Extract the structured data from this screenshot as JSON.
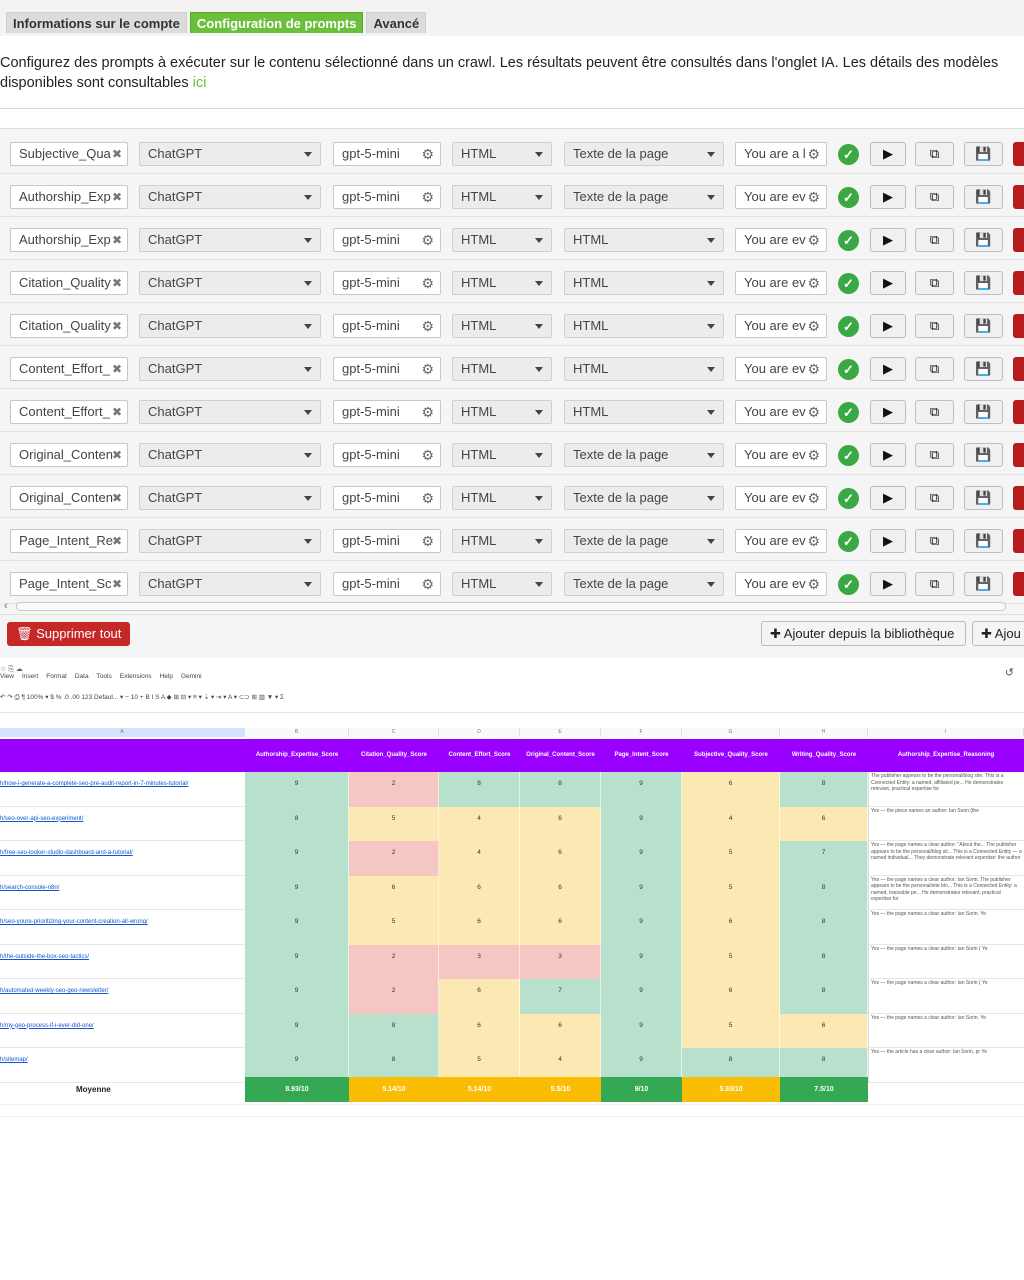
{
  "tabs": [
    {
      "label": "Informations sur le compte",
      "active": false
    },
    {
      "label": "Configuration de prompts",
      "active": true
    },
    {
      "label": "Avancé",
      "active": false
    }
  ],
  "description": {
    "line1": "Configurez des prompts à exécuter sur le contenu sélectionné dans un crawl. Les résultats peuvent être consultés dans l'onglet IA. Les détails des modèles",
    "line2": "disponibles sont consultables ",
    "link": "ici"
  },
  "colors": {
    "accent": "#6cbf3a",
    "ok": "#39a845",
    "danger": "#c62828",
    "sheet_header": "#9900ff"
  },
  "prompt_rows": [
    {
      "name": "Subjective_Qua",
      "provider": "ChatGPT",
      "model": "gpt-5-mini",
      "format": "HTML",
      "source": "Texte de la page",
      "prompt": "You are a l"
    },
    {
      "name": "Authorship_Exp",
      "provider": "ChatGPT",
      "model": "gpt-5-mini",
      "format": "HTML",
      "source": "Texte de la page",
      "prompt": "You are ev"
    },
    {
      "name": "Authorship_Exp",
      "provider": "ChatGPT",
      "model": "gpt-5-mini",
      "format": "HTML",
      "source": "HTML",
      "prompt": "You are ev"
    },
    {
      "name": "Citation_Quality",
      "provider": "ChatGPT",
      "model": "gpt-5-mini",
      "format": "HTML",
      "source": "HTML",
      "prompt": "You are ev"
    },
    {
      "name": "Citation_Quality",
      "provider": "ChatGPT",
      "model": "gpt-5-mini",
      "format": "HTML",
      "source": "HTML",
      "prompt": "You are ev"
    },
    {
      "name": "Content_Effort_",
      "provider": "ChatGPT",
      "model": "gpt-5-mini",
      "format": "HTML",
      "source": "HTML",
      "prompt": "You are ev"
    },
    {
      "name": "Content_Effort_",
      "provider": "ChatGPT",
      "model": "gpt-5-mini",
      "format": "HTML",
      "source": "HTML",
      "prompt": "You are ev"
    },
    {
      "name": "Original_Conten",
      "provider": "ChatGPT",
      "model": "gpt-5-mini",
      "format": "HTML",
      "source": "Texte de la page",
      "prompt": "You are ev"
    },
    {
      "name": "Original_Conten",
      "provider": "ChatGPT",
      "model": "gpt-5-mini",
      "format": "HTML",
      "source": "Texte de la page",
      "prompt": "You are ev"
    },
    {
      "name": "Page_Intent_Re",
      "provider": "ChatGPT",
      "model": "gpt-5-mini",
      "format": "HTML",
      "source": "Texte de la page",
      "prompt": "You are ev"
    },
    {
      "name": "Page_Intent_Sc",
      "provider": "ChatGPT",
      "model": "gpt-5-mini",
      "format": "HTML",
      "source": "Texte de la page",
      "prompt": "You are ev"
    }
  ],
  "icons": {
    "remove": "close-icon",
    "gear": "gear-icon",
    "ok": "check-circle-icon",
    "run": "play-icon",
    "copy": "copy-icon",
    "save": "save-icon",
    "trash": "trash-icon",
    "plus": "plus-icon"
  },
  "footer": {
    "delete_all": "Supprimer tout",
    "add_library": "Ajouter depuis la bibliothèque",
    "add": "Ajou"
  },
  "sheet": {
    "menu": [
      "View",
      "Insert",
      "Format",
      "Data",
      "Tools",
      "Extensions",
      "Help",
      "Gemini"
    ],
    "toolbar": "↶ ↷ ⎙ ¶   100% ▾   $  %  .0  .00  123   Defaul... ▾   −  10  +   B  I  S  A   ◆  ⊞  ⊟ ▾   ≡ ▾  ⇣ ▾  ⇥ ▾  A ▾   ⊂⊃  ⊞  ▥  ▼ ▾  Σ",
    "col_letters": [
      "A",
      "B",
      "C",
      "D",
      "E",
      "F",
      "G",
      "H",
      "I"
    ],
    "headers": [
      "Authorship_Expertise_Score",
      "Citation_Quality_Score",
      "Content_Effort_Score",
      "Original_Content_Score",
      "Page_Intent_Score",
      "Subjective_Quality_Score",
      "Writing_Quality_Score",
      "Authorship_Expertise_Reasoning"
    ],
    "rows": [
      {
        "url": "h/how-i-generate-a-complete-seo-pre-audit-report-in-7-minutes-tutorial/",
        "scores": [
          9,
          2,
          8,
          8,
          9,
          6,
          8
        ],
        "reason": "The publisher appears to be the personal/blog site. This is a Connected Entity: a named, affiliated pe... He demonstrates relevant, practical expertise for"
      },
      {
        "url": "h/seo-over-api-seo-experiment/",
        "scores": [
          8,
          5,
          4,
          6,
          9,
          4,
          6
        ],
        "reason": "Yes — the piece names an author: Ian Sorin (the"
      },
      {
        "url": "h/free-seo-looker-studio-dashboard-and-a-tutorial/",
        "scores": [
          9,
          2,
          4,
          6,
          9,
          5,
          7
        ],
        "reason": "Yes — the page names a clear author: \"About the... The publisher appears to be the personal/blog sit... This is a Connected Entity — a named individual... They demonstrate relevant expertise: the author"
      },
      {
        "url": "h/search-console-n8n/",
        "scores": [
          9,
          6,
          6,
          6,
          9,
          5,
          8
        ],
        "reason": "Yes — the page names a clear author: Ian Sorin. The publisher appears to be the personal/site blo... This is a Connected Entity: a named, traceable pe... He demonstrates relevant, practical expertise for"
      },
      {
        "url": "h/seo-youre-prioritizing-your-content-creation-all-wrong/",
        "scores": [
          9,
          5,
          6,
          6,
          9,
          6,
          8
        ],
        "reason": "Yes — the page names a clear author: Ian Sorin. Ye"
      },
      {
        "url": "h/the-outside-the-box-seo-tactics/",
        "scores": [
          9,
          2,
          3,
          3,
          9,
          5,
          8
        ],
        "reason": "Yes — the page names a clear author: Ian Sorin ( Ye"
      },
      {
        "url": "h/automated-weekly-seo-geo-newsletter/",
        "scores": [
          9,
          2,
          6,
          7,
          9,
          6,
          8
        ],
        "reason": "Yes — the page names a clear author: Ian Sorin ( Ye"
      },
      {
        "url": "h/my-geo-process-if-i-ever-did-one/",
        "scores": [
          9,
          8,
          6,
          6,
          9,
          5,
          6
        ],
        "reason": "Yes — the page names a clear author: Ian Sorin. Ye"
      },
      {
        "url": "h/sitemap/",
        "scores": [
          9,
          8,
          5,
          4,
          9,
          8,
          8
        ],
        "reason": "Yes — the article has a clear author: Ian Sorin, pr Ye"
      }
    ],
    "avg_label": "Moyenne",
    "averages": [
      "8.93/10",
      "5.14/10",
      "5.14/10",
      "5.5/10",
      "9/10",
      "5.93/10",
      "7.5/10"
    ],
    "avg_status": [
      "good",
      "warn",
      "warn",
      "warn",
      "good",
      "warn",
      "good"
    ]
  }
}
